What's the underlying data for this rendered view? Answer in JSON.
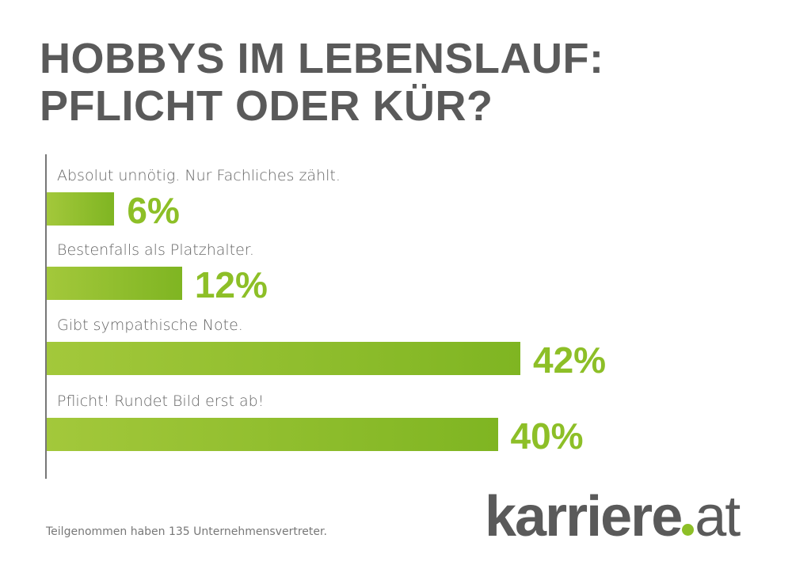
{
  "chart_data": {
    "type": "bar",
    "orientation": "horizontal",
    "title": "HOBBYS IM LEBENSLAUF: PFLICHT ODER KÜR?",
    "title_lines": [
      "HOBBYS IM LEBENSLAUF:",
      "PFLICHT ODER KÜR?"
    ],
    "categories": [
      "Absolut unnötig. Nur Fachliches zählt.",
      "Bestenfalls als Platzhalter.",
      "Gibt sympathische Note.",
      "Pflicht! Rundet Bild erst ab!"
    ],
    "values": [
      6,
      12,
      42,
      40
    ],
    "value_labels": [
      "6%",
      "12%",
      "42%",
      "40%"
    ],
    "unit": "%",
    "xlim": [
      0,
      42
    ],
    "bar_color": "#8dbf27"
  },
  "footnote": "Teilgenommen haben 135 Unternehmensvertreter.",
  "logo": {
    "main": "karriere",
    "suffix": "at",
    "dot_color": "#8dbf27"
  }
}
